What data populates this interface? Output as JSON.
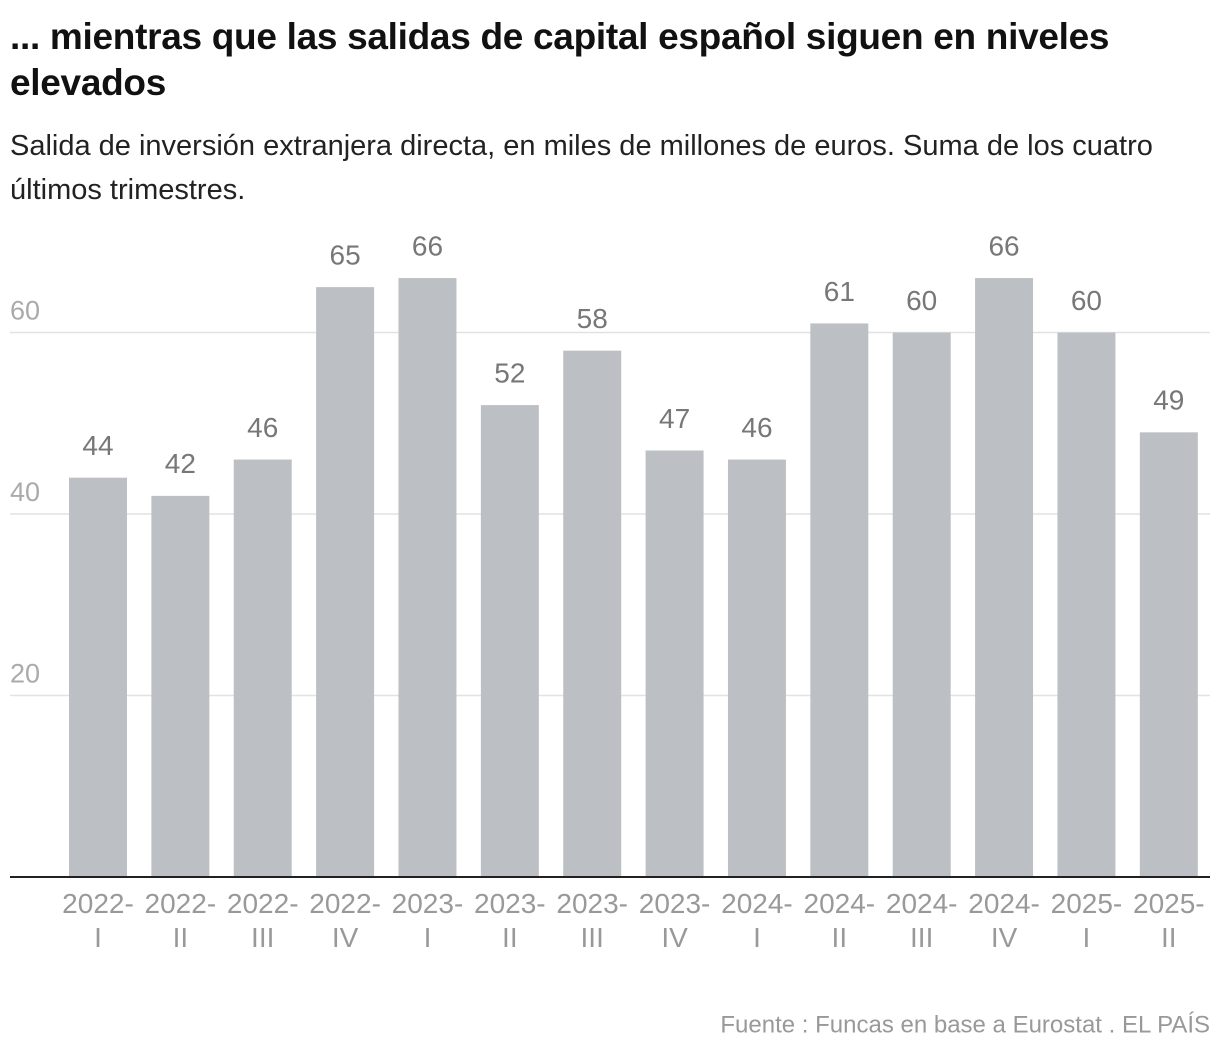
{
  "chart_data": {
    "type": "bar",
    "title": "... mientras que las salidas de capital español siguen en niveles elevados",
    "subtitle": "Salida de inversión extranjera directa, en miles de millones de euros. Suma de los cuatro últimos trimestres.",
    "categories": [
      [
        "2022-",
        "I"
      ],
      [
        "2022-",
        "II"
      ],
      [
        "2022-",
        "III"
      ],
      [
        "2022-",
        "IV"
      ],
      [
        "2023-",
        "I"
      ],
      [
        "2023-",
        "II"
      ],
      [
        "2023-",
        "III"
      ],
      [
        "2023-",
        "IV"
      ],
      [
        "2024-",
        "I"
      ],
      [
        "2024-",
        "II"
      ],
      [
        "2024-",
        "III"
      ],
      [
        "2024-",
        "IV"
      ],
      [
        "2025-",
        "I"
      ],
      [
        "2025-",
        "II"
      ]
    ],
    "values": [
      44,
      42,
      46,
      65,
      66,
      52,
      58,
      47,
      46,
      61,
      60,
      66,
      60,
      49
    ],
    "color": "#bcc0c4",
    "ylim": [
      0,
      70
    ],
    "yticks": [
      20,
      40,
      60
    ],
    "grid": true,
    "source": "Fuente : Funcas en base a Eurostat . EL PAÍS"
  }
}
